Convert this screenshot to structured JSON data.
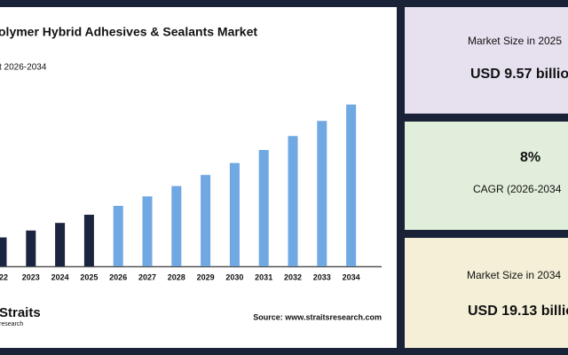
{
  "chart_data": {
    "type": "bar",
    "title": "olymer Hybrid Adhesives & Sealants Market",
    "subtitle": "t 2026-2034",
    "categories": [
      "22",
      "2023",
      "2024",
      "2025",
      "2026",
      "2027",
      "2028",
      "2029",
      "2030",
      "2031",
      "2032",
      "2033",
      "2034"
    ],
    "values": [
      7.6,
      8.2,
      8.86,
      9.57,
      10.34,
      11.16,
      12.06,
      13.02,
      14.06,
      15.19,
      16.4,
      17.71,
      19.13
    ],
    "bar_colors": [
      "#1c2540",
      "#1c2540",
      "#1c2540",
      "#1c2540",
      "#6fa8e2",
      "#6fa8e2",
      "#6fa8e2",
      "#6fa8e2",
      "#6fa8e2",
      "#6fa8e2",
      "#6fa8e2",
      "#6fa8e2",
      "#6fa8e2"
    ],
    "ylim": [
      5.1,
      20.5
    ],
    "source": "Source: www.straitsresearch.com",
    "logo": {
      "name": "Straits",
      "sub": "research"
    }
  },
  "cards": [
    {
      "label": "Market Size in 2025",
      "value": "USD 9.57 billio"
    },
    {
      "value": "8%",
      "label": "CAGR (2026-2034"
    },
    {
      "label": "Market Size in 2034",
      "value": "USD 19.13 billio"
    }
  ]
}
